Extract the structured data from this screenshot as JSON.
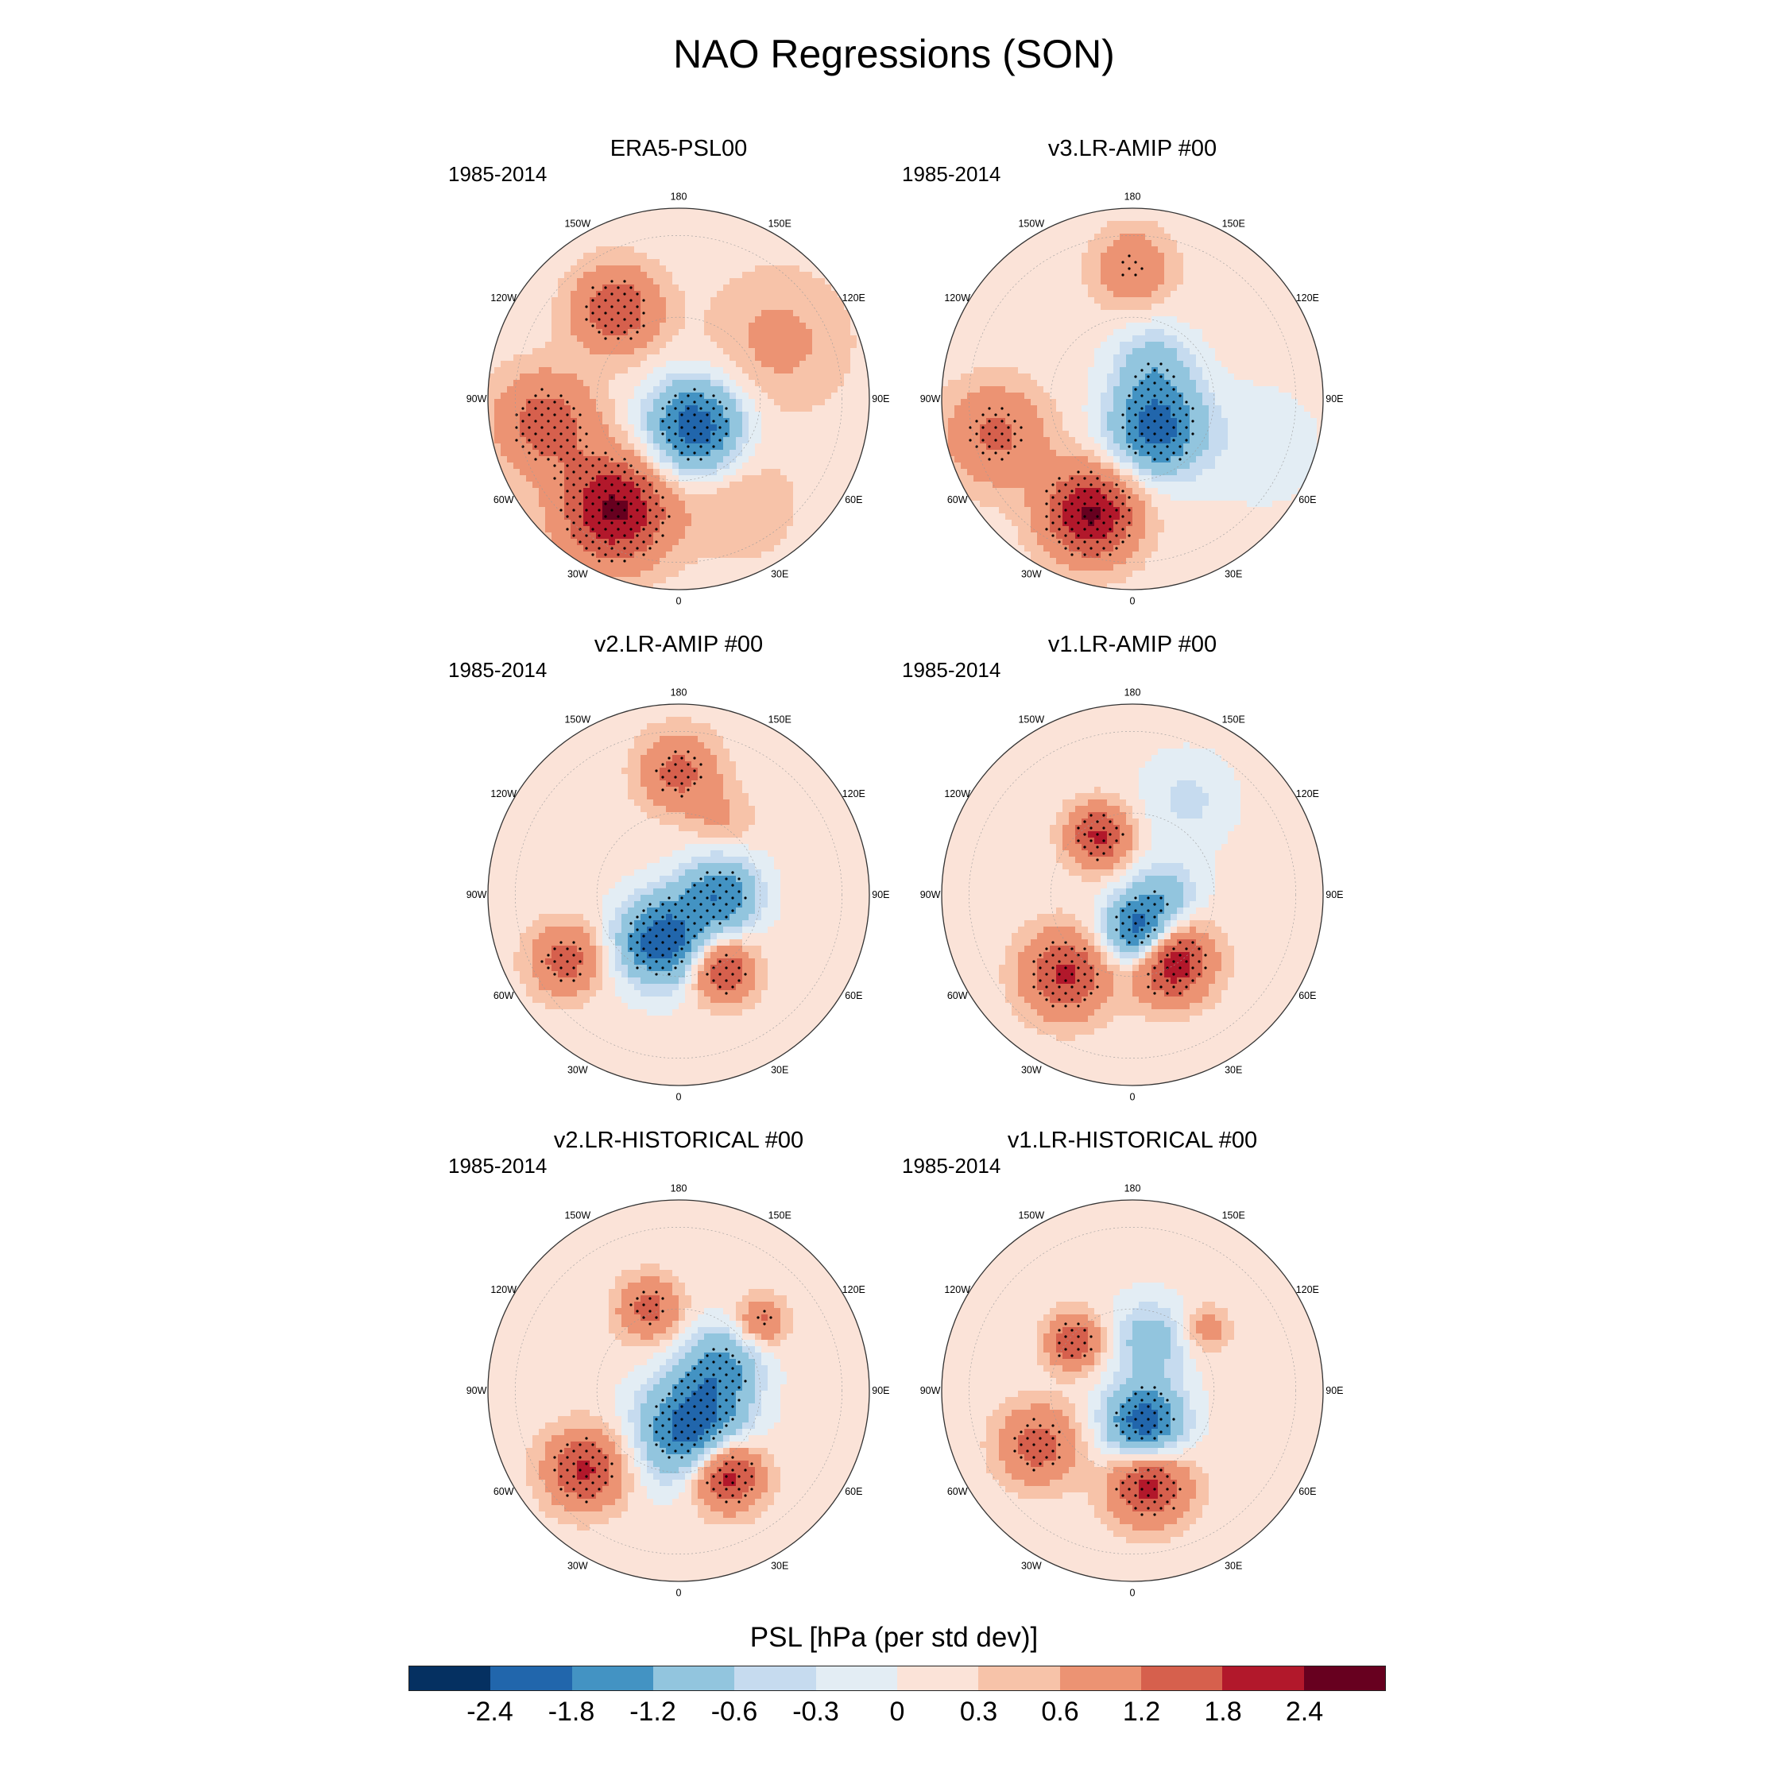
{
  "title": "NAO Regressions (SON)",
  "chart_data": {
    "type": "heatmap",
    "projection": "north polar stereographic",
    "variable": "PSL",
    "colorbar": {
      "label": "PSL [hPa (per std dev)]",
      "levels": [
        "-2.4",
        "-1.8",
        "-1.2",
        "-0.6",
        "-0.3",
        "0",
        "0.3",
        "0.6",
        "1.2",
        "1.8",
        "2.4"
      ],
      "colors": [
        "#053061",
        "#2166ac",
        "#4393c3",
        "#92c5de",
        "#c6dbef",
        "#e3edf4",
        "#fbe3d8",
        "#f7c3a9",
        "#ec9373",
        "#d6604d",
        "#b2182b",
        "#67001f"
      ]
    },
    "longitude_labels": [
      "180",
      "150E",
      "120E",
      "90E",
      "60E",
      "30E",
      "0",
      "30W",
      "60W",
      "90W",
      "120W",
      "150W"
    ],
    "panels": [
      {
        "title": "ERA5-PSL00",
        "period": "1985-2014",
        "anomalies": [
          {
            "lon": 30,
            "lat": 78,
            "value": -2.4,
            "spread": 12
          },
          {
            "lon": 330,
            "lat": 43,
            "value": 2.4,
            "spread": 14
          },
          {
            "lon": 280,
            "lat": 40,
            "value": 1.4,
            "spread": 13
          },
          {
            "lon": 215,
            "lat": 50,
            "value": 1.6,
            "spread": 11
          },
          {
            "lon": 120,
            "lat": 48,
            "value": 0.6,
            "spread": 18
          },
          {
            "lon": 30,
            "lat": 45,
            "value": 0.5,
            "spread": 14
          }
        ]
      },
      {
        "title": "v3.LR-AMIP  #00",
        "period": "1985-2014",
        "anomalies": [
          {
            "lon": 40,
            "lat": 76,
            "value": -2.2,
            "spread": 12
          },
          {
            "lon": 150,
            "lat": 75,
            "value": -0.9,
            "spread": 10
          },
          {
            "lon": 340,
            "lat": 45,
            "value": 2.4,
            "spread": 12
          },
          {
            "lon": 285,
            "lat": 38,
            "value": 1.2,
            "spread": 13
          },
          {
            "lon": 180,
            "lat": 42,
            "value": 1.0,
            "spread": 10
          },
          {
            "lon": 70,
            "lat": 40,
            "value": -0.3,
            "spread": 16
          }
        ]
      },
      {
        "title": "v2.LR-AMIP  #00",
        "period": "1985-2014",
        "anomalies": [
          {
            "lon": 340,
            "lat": 72,
            "value": -2.4,
            "spread": 11
          },
          {
            "lon": 90,
            "lat": 75,
            "value": -1.8,
            "spread": 10
          },
          {
            "lon": 30,
            "lat": 58,
            "value": 1.8,
            "spread": 8
          },
          {
            "lon": 300,
            "lat": 42,
            "value": 1.4,
            "spread": 9
          },
          {
            "lon": 180,
            "lat": 45,
            "value": 1.3,
            "spread": 10
          },
          {
            "lon": 150,
            "lat": 58,
            "value": 0.5,
            "spread": 8
          }
        ]
      },
      {
        "title": "v1.LR-AMIP  #00",
        "period": "1985-2014",
        "anomalies": [
          {
            "lon": 10,
            "lat": 76,
            "value": -2.4,
            "spread": 9
          },
          {
            "lon": 90,
            "lat": 78,
            "value": -0.9,
            "spread": 9
          },
          {
            "lon": 30,
            "lat": 62,
            "value": 2.4,
            "spread": 10
          },
          {
            "lon": 320,
            "lat": 52,
            "value": 1.8,
            "spread": 11
          },
          {
            "lon": 210,
            "lat": 65,
            "value": 1.8,
            "spread": 8
          },
          {
            "lon": 150,
            "lat": 50,
            "value": -0.5,
            "spread": 12
          }
        ]
      },
      {
        "title": "v2.LR-HISTORICAL  #00",
        "period": "1985-2014",
        "anomalies": [
          {
            "lon": 20,
            "lat": 75,
            "value": -2.4,
            "spread": 13
          },
          {
            "lon": 120,
            "lat": 72,
            "value": -1.4,
            "spread": 10
          },
          {
            "lon": 30,
            "lat": 55,
            "value": 2.4,
            "spread": 9
          },
          {
            "lon": 310,
            "lat": 45,
            "value": 1.8,
            "spread": 10
          },
          {
            "lon": 200,
            "lat": 58,
            "value": 1.3,
            "spread": 8
          },
          {
            "lon": 130,
            "lat": 50,
            "value": 1.2,
            "spread": 6
          }
        ]
      },
      {
        "title": "v1.LR-HISTORICAL  #00",
        "period": "1985-2014",
        "anomalies": [
          {
            "lon": 20,
            "lat": 77,
            "value": -2.4,
            "spread": 10
          },
          {
            "lon": 160,
            "lat": 70,
            "value": -1.0,
            "spread": 10
          },
          {
            "lon": 10,
            "lat": 55,
            "value": 2.0,
            "spread": 10
          },
          {
            "lon": 300,
            "lat": 50,
            "value": 1.4,
            "spread": 10
          },
          {
            "lon": 230,
            "lat": 62,
            "value": 1.6,
            "spread": 7
          },
          {
            "lon": 130,
            "lat": 55,
            "value": 0.8,
            "spread": 6
          }
        ]
      }
    ]
  }
}
